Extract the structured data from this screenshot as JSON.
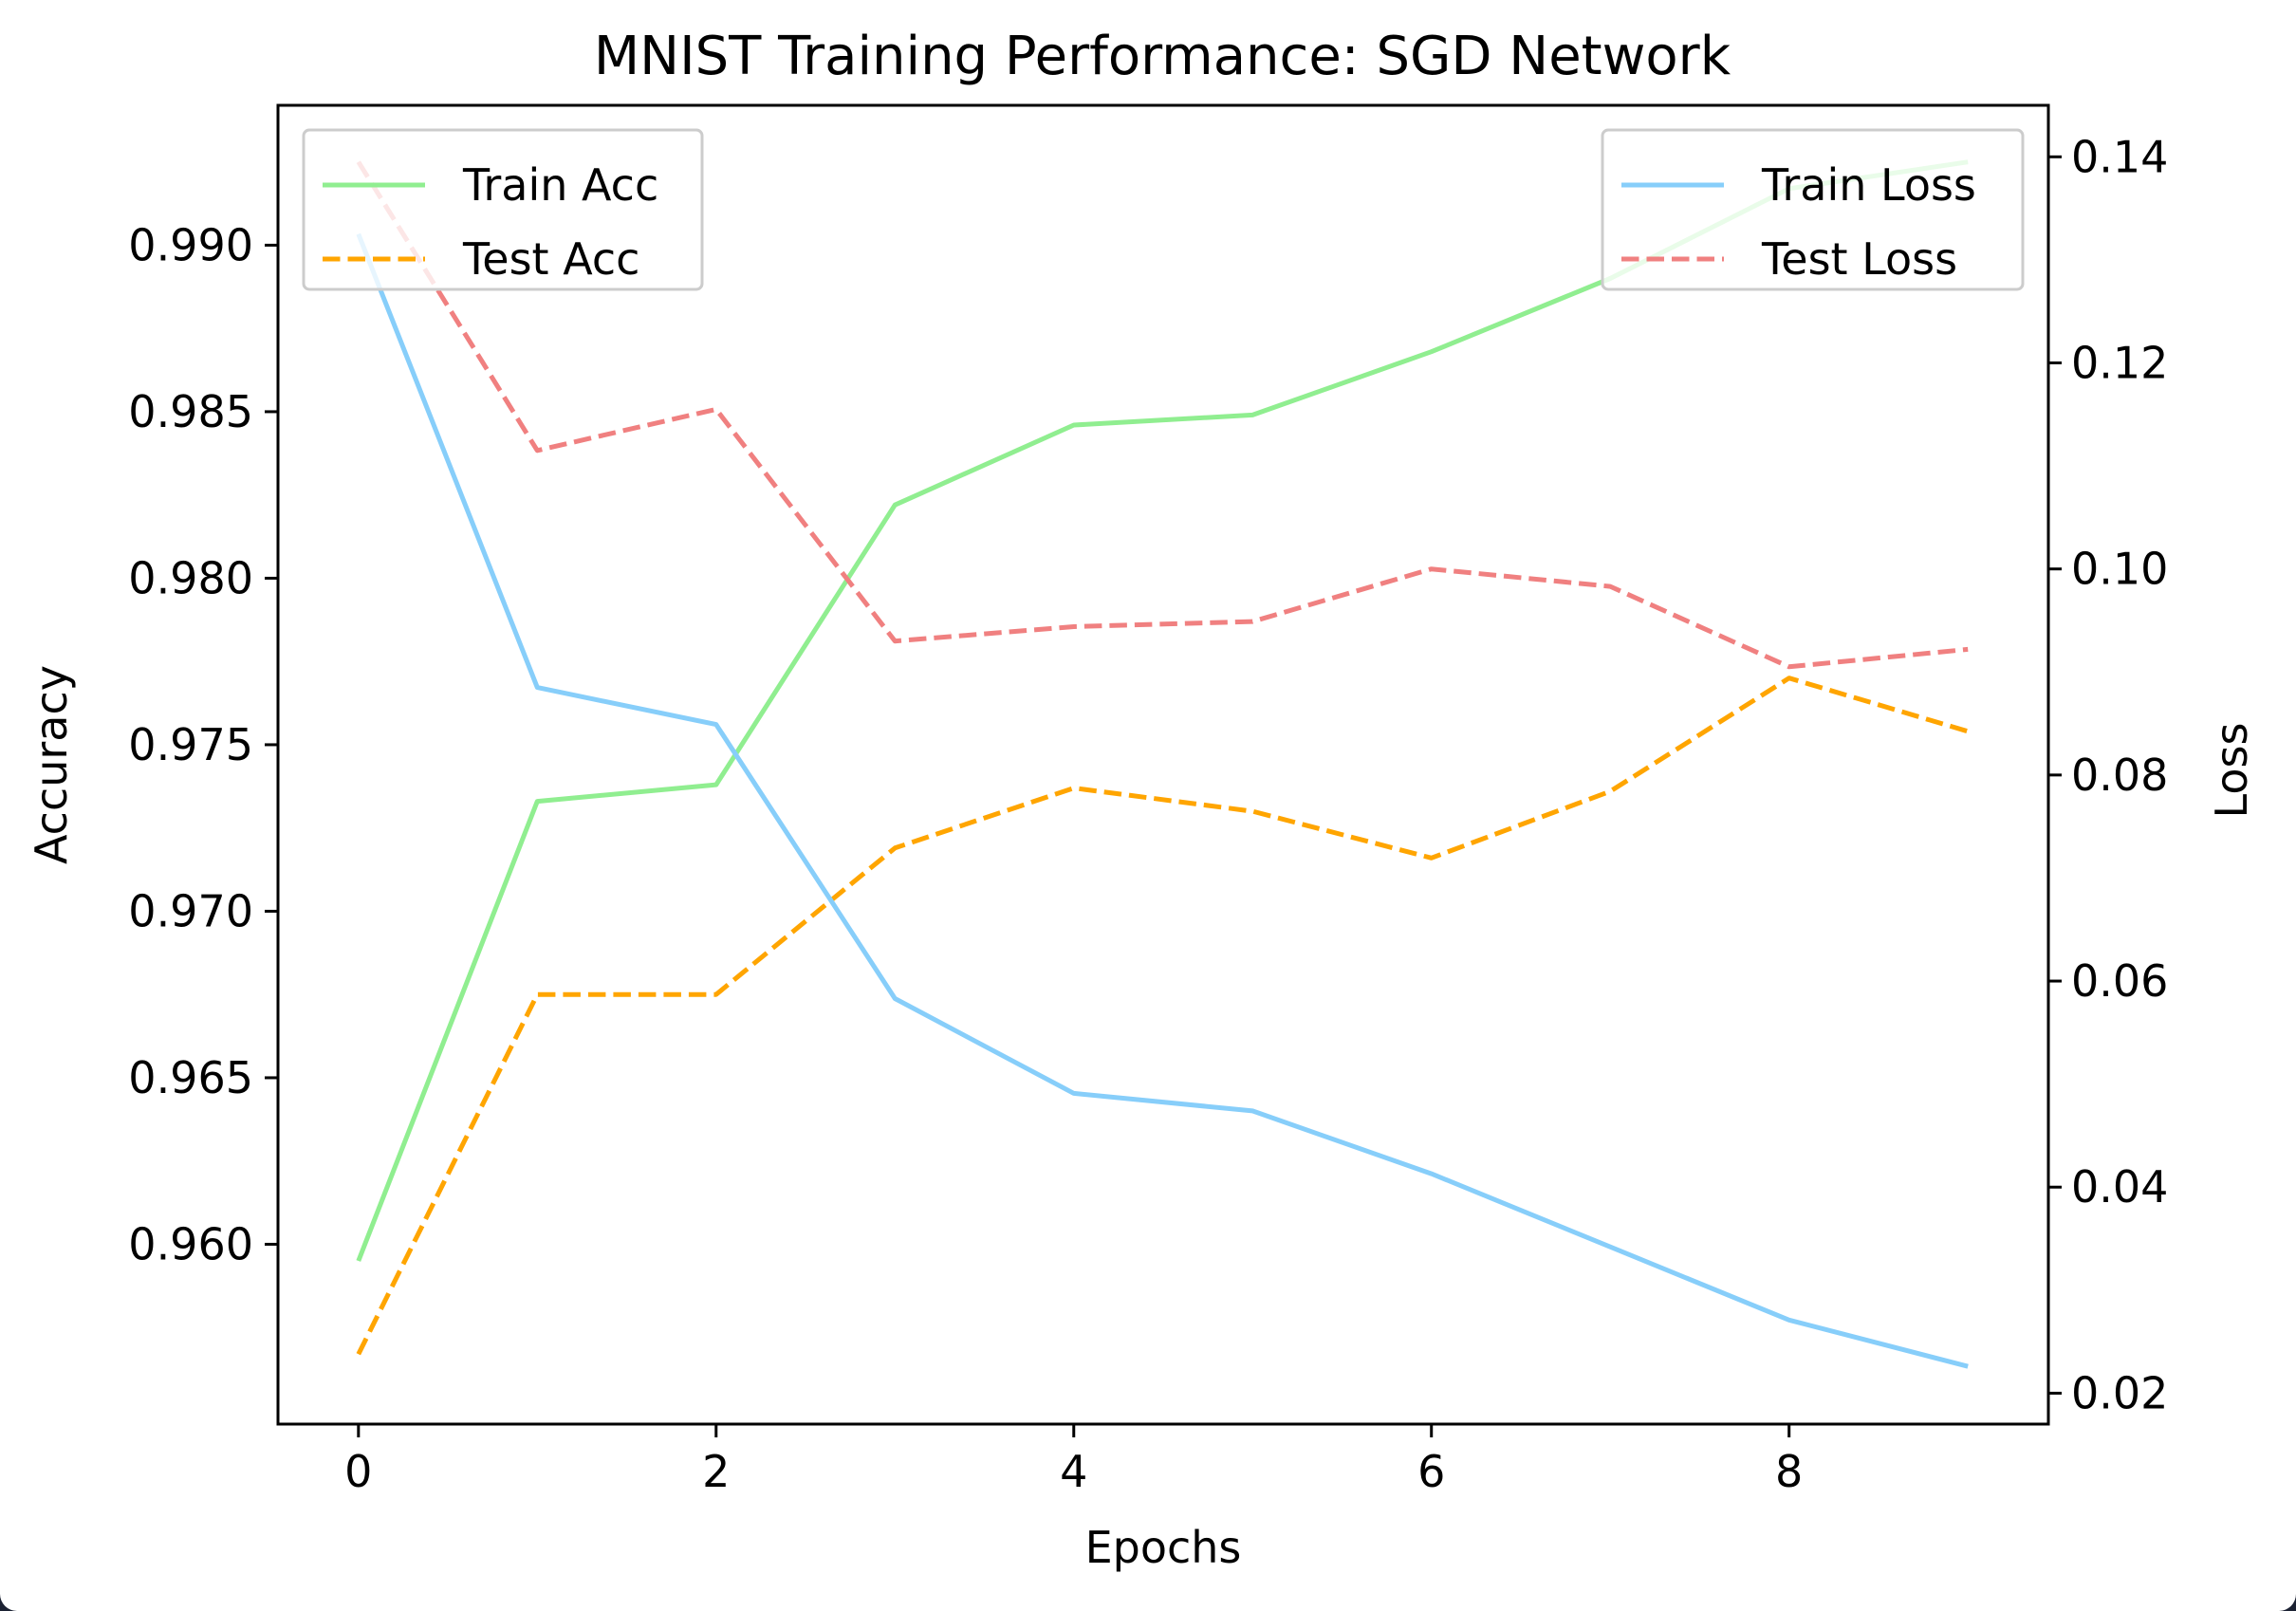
{
  "chart_data": {
    "type": "line",
    "title": "MNIST Training Performance: SGD Network",
    "xlabel": "Epochs",
    "ylabel_left": "Accuracy",
    "ylabel_right": "Loss",
    "x": [
      0,
      1,
      2,
      3,
      4,
      5,
      6,
      7,
      8,
      9
    ],
    "xticks": [
      0,
      2,
      4,
      6,
      8
    ],
    "xlim": [
      -0.45,
      9.45
    ],
    "ylim_left": [
      0.9546,
      0.9942
    ],
    "yticks_left": [
      "0.960",
      "0.965",
      "0.970",
      "0.975",
      "0.980",
      "0.985",
      "0.990"
    ],
    "ylim_right": [
      0.017,
      0.145
    ],
    "yticks_right": [
      "0.02",
      "0.04",
      "0.06",
      "0.08",
      "0.10",
      "0.12",
      "0.14"
    ],
    "grid": false,
    "series": [
      {
        "name": "Train Acc",
        "axis": "left",
        "style": "solid",
        "color": "#90ee90",
        "values": [
          0.9595,
          0.9733,
          0.9738,
          0.9822,
          0.9846,
          0.9849,
          0.9868,
          0.989,
          0.9917,
          0.9925
        ]
      },
      {
        "name": "Test Acc",
        "axis": "left",
        "style": "dashed",
        "color": "#ffa500",
        "values": [
          0.9567,
          0.9675,
          0.9675,
          0.9719,
          0.9737,
          0.973,
          0.9716,
          0.9736,
          0.977,
          0.9754
        ]
      },
      {
        "name": "Train Loss",
        "axis": "right",
        "style": "solid",
        "color": "#87cefa",
        "values": [
          0.1325,
          0.0885,
          0.0849,
          0.0583,
          0.0491,
          0.0474,
          0.0413,
          0.0342,
          0.0271,
          0.0226
        ]
      },
      {
        "name": "Test Loss",
        "axis": "right",
        "style": "dashed",
        "color": "#f08080",
        "values": [
          0.1395,
          0.1115,
          0.1155,
          0.093,
          0.0944,
          0.0949,
          0.1,
          0.0983,
          0.0905,
          0.0922
        ]
      }
    ],
    "legend_left": {
      "placement": "upper-left",
      "entries": [
        "Train Acc",
        "Test Acc"
      ]
    },
    "legend_right": {
      "placement": "upper-right",
      "entries": [
        "Train Loss",
        "Test Loss"
      ]
    }
  }
}
